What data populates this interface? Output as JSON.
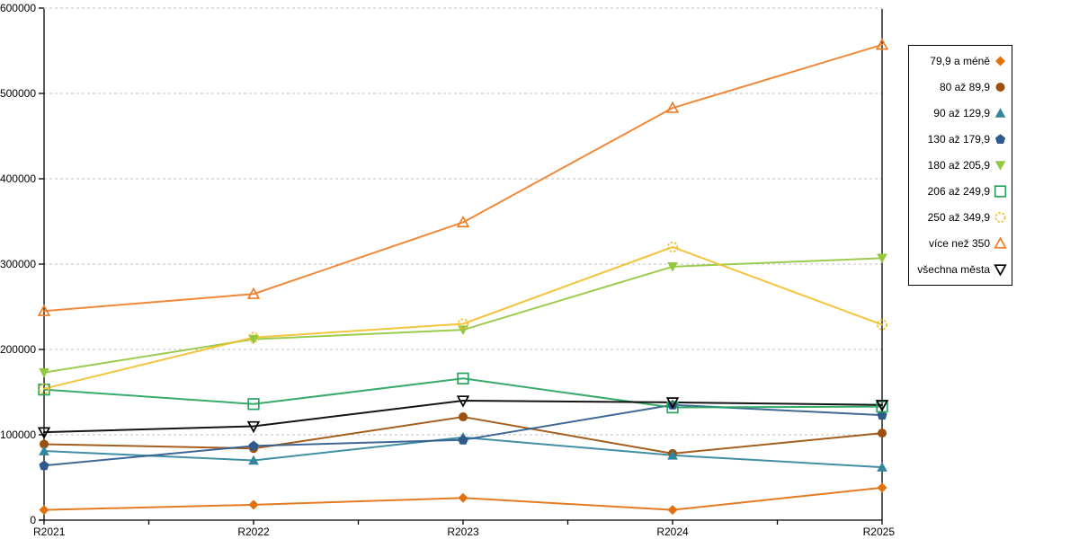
{
  "chart_data": {
    "type": "line",
    "title": "",
    "xlabel": "",
    "ylabel": "",
    "categories": [
      "R2021",
      "R2022",
      "R2023",
      "R2024",
      "R2025"
    ],
    "ylim": [
      0,
      600000
    ],
    "y_ticks": [
      0,
      100000,
      200000,
      300000,
      400000,
      500000,
      600000
    ],
    "grid": "horizontal-dashed",
    "grid_color": "#c0c0c0",
    "axis_color": "#000000",
    "legend_position": "right-box",
    "series": [
      {
        "name": "79,9 a méně",
        "color": "#e2700d",
        "marker": "diamond",
        "filled": true,
        "values": [
          12000,
          18000,
          26000,
          12000,
          38000
        ]
      },
      {
        "name": "80 až 89,9",
        "color": "#9c500b",
        "marker": "circle",
        "filled": true,
        "values": [
          89000,
          84000,
          121000,
          78000,
          102000
        ]
      },
      {
        "name": "90 až 129,9",
        "color": "#31859c",
        "marker": "triangle-up",
        "filled": true,
        "values": [
          81000,
          70000,
          97000,
          76000,
          62000
        ]
      },
      {
        "name": "130 až 179,9",
        "color": "#2f5b8c",
        "marker": "pentagon",
        "filled": true,
        "values": [
          64000,
          87000,
          94000,
          135000,
          123000
        ]
      },
      {
        "name": "180 až 205,9",
        "color": "#92c83e",
        "marker": "triangle-down",
        "filled": true,
        "values": [
          173000,
          212000,
          223000,
          297000,
          307000
        ]
      },
      {
        "name": "206 až 249,9",
        "color": "#27a35f",
        "marker": "square-open",
        "filled": false,
        "values": [
          153000,
          136000,
          166000,
          132000,
          133000
        ]
      },
      {
        "name": "250 až 349,9",
        "color": "#f2bf2b",
        "marker": "circle-open-dashed",
        "filled": false,
        "values": [
          154000,
          214000,
          230000,
          320000,
          229000
        ]
      },
      {
        "name": "více než 350",
        "color": "#f07e28",
        "marker": "triangle-up-open",
        "filled": false,
        "values": [
          245000,
          265000,
          349000,
          483000,
          557000
        ]
      },
      {
        "name": "všechna města",
        "color": "#000000",
        "marker": "triangle-down-open",
        "filled": false,
        "values": [
          103000,
          110000,
          140000,
          138000,
          135000
        ]
      }
    ]
  }
}
